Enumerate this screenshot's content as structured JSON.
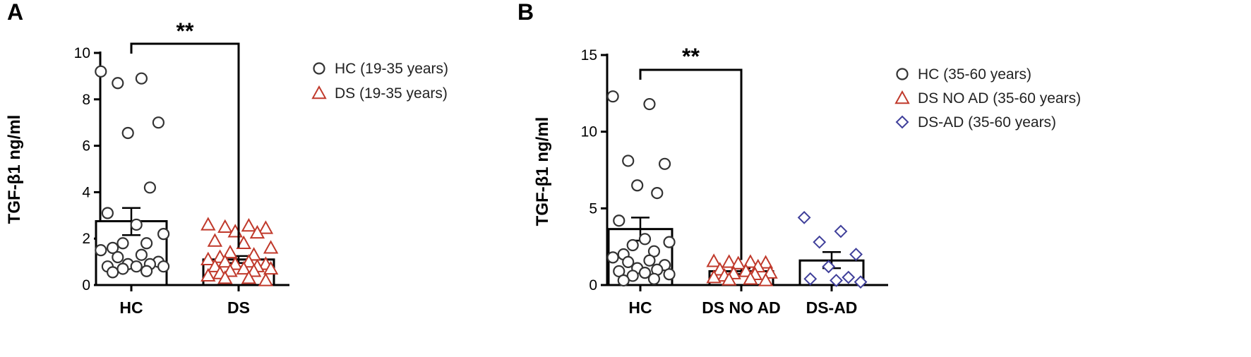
{
  "chart_data": [
    {
      "panel": "A",
      "type": "scatter",
      "ylabel": "TGF-β1 ng/ml",
      "ylim": [
        0,
        10
      ],
      "yticks": [
        0,
        2,
        4,
        6,
        8,
        10
      ],
      "categories": [
        "HC",
        "DS"
      ],
      "series": [
        {
          "name": "HC (19-35 years)",
          "category": "HC",
          "marker": "circle",
          "color": "#333333",
          "mean": 2.75,
          "sem_low": 2.15,
          "sem_high": 3.32,
          "values": [
            9.2,
            8.9,
            8.7,
            7.0,
            6.55,
            4.2,
            3.1,
            2.6,
            2.2,
            1.8,
            1.8,
            1.6,
            1.5,
            1.3,
            1.2,
            1.0,
            0.9,
            0.9,
            0.8,
            0.8,
            0.8,
            0.7,
            0.6,
            0.55
          ]
        },
        {
          "name": "DS (19-35 years)",
          "category": "DS",
          "marker": "triangle",
          "color": "#c0392b",
          "mean": 1.1,
          "sem_low": 0.95,
          "sem_high": 1.25,
          "values": [
            2.6,
            2.55,
            2.5,
            2.45,
            2.3,
            2.25,
            1.9,
            1.8,
            1.6,
            1.4,
            1.3,
            1.2,
            1.1,
            1.0,
            1.0,
            0.9,
            0.9,
            0.8,
            0.8,
            0.7,
            0.7,
            0.6,
            0.6,
            0.5,
            0.4,
            0.3,
            0.3,
            0.2
          ]
        }
      ],
      "significance": {
        "label": "**",
        "from": "HC",
        "to": "DS"
      },
      "legend": "top-right"
    },
    {
      "panel": "B",
      "type": "scatter",
      "ylabel": "TGF-β1 ng/ml",
      "ylim": [
        0,
        15
      ],
      "yticks": [
        0,
        5,
        10,
        15
      ],
      "categories": [
        "HC",
        "DS NO AD",
        "DS-AD"
      ],
      "series": [
        {
          "name": "HC (35-60 years)",
          "category": "HC",
          "marker": "circle",
          "color": "#333333",
          "mean": 3.65,
          "sem_low": 2.9,
          "sem_high": 4.4,
          "values": [
            12.3,
            11.8,
            8.1,
            7.9,
            6.5,
            6.0,
            4.2,
            3.0,
            2.8,
            2.6,
            2.2,
            2.0,
            1.8,
            1.6,
            1.5,
            1.3,
            1.1,
            1.0,
            0.9,
            0.8,
            0.7,
            0.6,
            0.4,
            0.3
          ]
        },
        {
          "name": "DS NO AD (35-60 years)",
          "category": "DS NO AD",
          "marker": "triangle",
          "color": "#c0392b",
          "mean": 0.9,
          "sem_low": 0.72,
          "sem_high": 1.08,
          "values": [
            1.55,
            1.5,
            1.5,
            1.45,
            1.4,
            1.2,
            1.0,
            0.9,
            0.8,
            0.75,
            0.7,
            0.6,
            0.5,
            0.4,
            0.35,
            0.3
          ]
        },
        {
          "name": "DS-AD (35-60 years)",
          "category": "DS-AD",
          "marker": "diamond",
          "color": "#3f3f9a",
          "mean": 1.6,
          "sem_low": 1.1,
          "sem_high": 2.15,
          "values": [
            4.4,
            3.5,
            2.8,
            2.0,
            1.2,
            0.5,
            0.4,
            0.3,
            0.2
          ]
        }
      ],
      "significance": {
        "label": "**",
        "from": "HC",
        "to": "DS NO AD"
      },
      "legend": "top-right"
    }
  ]
}
